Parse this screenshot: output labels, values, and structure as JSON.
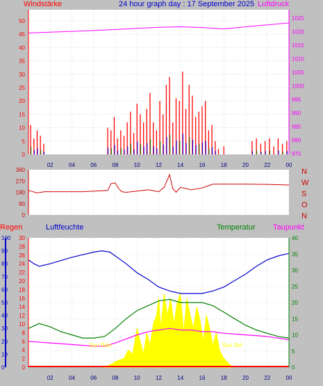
{
  "header": {
    "wind_label": "Windstärke",
    "title": "24 hour graph day : 17 September 2025",
    "pressure_label": "Luftdruck"
  },
  "colors": {
    "background": "#c0c0c0",
    "plot_bg": "#ffffff",
    "wind": "#ff0000",
    "gust_blue": "#0000ff",
    "gust_green": "#008000",
    "pressure": "#ff00ff",
    "direction": "#cc0000",
    "humidity": "#0000cc",
    "temperature": "#008000",
    "dewpoint": "#ff00ff",
    "solar": "#ffff00",
    "rain": "#ff0000"
  },
  "bottom_panel": {
    "rain_label": "Regen",
    "humidity_label": "Luftfeuchte",
    "temperature_label": "Temperatur",
    "dewpoint_label": "Taupunkt",
    "sunrise_label": "Sun Rise",
    "sunset_label": "Sun Set"
  },
  "chart_data": [
    {
      "type": "bar",
      "panel": "wind_pressure",
      "x_ticks": [
        "02",
        "04",
        "06",
        "08",
        "10",
        "12",
        "14",
        "16",
        "18",
        "20",
        "22",
        "00"
      ],
      "y_left_ticks": [
        "0",
        "5",
        "10",
        "15",
        "20",
        "25",
        "30",
        "35",
        "40",
        "45",
        "50"
      ],
      "y_left_range": [
        0,
        50
      ],
      "y_right_ticks": [
        "975",
        "980",
        "985",
        "990",
        "995",
        "1000",
        "1005",
        "1010",
        "1015",
        "1020",
        "1025"
      ],
      "y_right_range": [
        973,
        1027
      ],
      "series": [
        {
          "name": "Windstärke",
          "x_hours": [
            0.2,
            0.5,
            0.8,
            1.1,
            1.4,
            7.3,
            7.6,
            7.9,
            8.2,
            8.5,
            8.8,
            9.1,
            9.4,
            9.7,
            10.0,
            10.3,
            10.6,
            10.9,
            11.2,
            11.5,
            11.8,
            12.1,
            12.4,
            12.7,
            13.0,
            13.3,
            13.6,
            13.9,
            14.2,
            14.5,
            14.8,
            15.1,
            15.4,
            15.7,
            16.0,
            16.3,
            16.6,
            16.9,
            17.2,
            17.5,
            18.0,
            20.6,
            21.0,
            21.4,
            21.8,
            22.2,
            22.6,
            23.0,
            23.4,
            23.8
          ],
          "values": [
            11,
            6,
            9,
            7,
            4,
            10,
            9,
            14,
            6,
            9,
            7,
            12,
            16,
            8,
            19,
            15,
            12,
            17,
            23,
            12,
            9,
            20,
            15,
            26,
            29,
            12,
            21,
            20,
            31,
            17,
            26,
            22,
            14,
            16,
            18,
            20,
            9,
            11,
            5,
            2,
            3,
            5,
            6,
            4,
            5,
            6,
            3,
            6,
            4,
            5
          ]
        },
        {
          "name": "Luftdruck",
          "x_hours": [
            0,
            2,
            4,
            6,
            8,
            10,
            12,
            14,
            16,
            18,
            20,
            22,
            24
          ],
          "values": [
            1019.5,
            1019.8,
            1020.1,
            1020.4,
            1020.8,
            1021.2,
            1021.6,
            1021.8,
            1021.5,
            1021.0,
            1021.8,
            1022.5,
            1023.2
          ]
        }
      ]
    },
    {
      "type": "line",
      "panel": "wind_direction",
      "y_left_ticks": [
        "0",
        "90",
        "180",
        "270",
        "360"
      ],
      "y_left_range": [
        0,
        360
      ],
      "y_right_labels": [
        "N",
        "W",
        "S",
        "O",
        "N"
      ],
      "series": [
        {
          "name": "",
          "x_hours": [
            0,
            0.8,
            1.5,
            3,
            5,
            7.3,
            7.6,
            8.0,
            8.3,
            8.6,
            9,
            10,
            11,
            12,
            12.5,
            13,
            13.3,
            13.6,
            14,
            15,
            16,
            16.5,
            17,
            18,
            20,
            22,
            24
          ],
          "values": [
            195,
            175,
            185,
            185,
            185,
            195,
            250,
            255,
            210,
            185,
            180,
            190,
            200,
            185,
            220,
            320,
            210,
            180,
            220,
            200,
            215,
            230,
            245,
            245,
            245,
            243,
            238
          ]
        }
      ]
    },
    {
      "type": "line",
      "panel": "climate",
      "x_ticks": [
        "02",
        "04",
        "06",
        "08",
        "10",
        "12",
        "14",
        "16",
        "18",
        "20",
        "22",
        "00"
      ],
      "y_humidity_ticks": [
        "0",
        "10",
        "20",
        "30",
        "40",
        "50",
        "60",
        "70",
        "80",
        "90",
        "100"
      ],
      "y_humidity_range": [
        0,
        100
      ],
      "y_rain_ticks": [
        "0",
        "2",
        "4",
        "6",
        "8",
        "10",
        "12",
        "14",
        "16",
        "18",
        "20",
        "22",
        "24",
        "26",
        "28",
        "30"
      ],
      "y_rain_range": [
        0,
        30
      ],
      "y_temp_ticks": [
        "0",
        "5",
        "10",
        "15",
        "20",
        "25",
        "30",
        "35",
        "40"
      ],
      "y_temp_range": [
        0,
        40
      ],
      "series": [
        {
          "name": "Luftfeuchte",
          "x_hours": [
            0,
            0.5,
            1,
            2,
            4,
            6,
            6.8,
            7.5,
            8,
            9,
            10,
            11,
            12,
            13,
            14,
            15,
            16,
            17,
            18,
            19,
            20,
            21,
            22,
            23,
            24
          ],
          "values": [
            83,
            80,
            78,
            80,
            85,
            89,
            90,
            89,
            86,
            80,
            73,
            68,
            62,
            59,
            57,
            57,
            57,
            59,
            62,
            67,
            72,
            78,
            83,
            86,
            88
          ]
        },
        {
          "name": "Temperatur",
          "x_hours": [
            0,
            1,
            2,
            3,
            4,
            5,
            6,
            7,
            8,
            9,
            10,
            11,
            12,
            13,
            14,
            15,
            16,
            17,
            18,
            19,
            20,
            21,
            22,
            23,
            24
          ],
          "values": [
            12,
            13.5,
            12.5,
            11,
            10,
            9,
            9,
            9.5,
            12,
            15,
            17.5,
            19,
            20.5,
            21,
            20,
            20,
            20,
            19,
            17,
            15,
            13,
            11.5,
            10.5,
            9.5,
            9
          ]
        },
        {
          "name": "Taupunkt",
          "x_hours": [
            0,
            2,
            4,
            6,
            7,
            8,
            10,
            11,
            12,
            13,
            14,
            15,
            16,
            17,
            18,
            20,
            22,
            24
          ],
          "values": [
            8,
            7.5,
            7,
            6.5,
            6.5,
            7.5,
            10,
            11,
            11.5,
            12,
            11.5,
            11.5,
            11,
            11,
            10.5,
            10,
            9.5,
            8.5
          ]
        },
        {
          "name": "Solar",
          "x_hours": [
            6.8,
            7.5,
            8.2,
            8.8,
            9.2,
            9.6,
            10,
            10.3,
            10.6,
            10.9,
            11.2,
            11.5,
            11.8,
            12,
            12.2,
            12.5,
            12.8,
            13.1,
            13.4,
            13.7,
            14,
            14.3,
            14.6,
            14.9,
            15.2,
            15.5,
            15.8,
            16.1,
            16.4,
            16.7,
            17,
            17.3,
            17.6,
            18,
            18.4,
            18.8
          ],
          "values": [
            0,
            0.5,
            1.5,
            2,
            4,
            3,
            9,
            6,
            3,
            8,
            5,
            10,
            12,
            16,
            9,
            17,
            12,
            16,
            10,
            15,
            17,
            8,
            16,
            12,
            9,
            14,
            11,
            6,
            12,
            9,
            5,
            8,
            4,
            2,
            1,
            0
          ]
        },
        {
          "name": "Regen",
          "x_hours": [
            0,
            24
          ],
          "values": [
            0,
            0
          ]
        }
      ]
    }
  ]
}
